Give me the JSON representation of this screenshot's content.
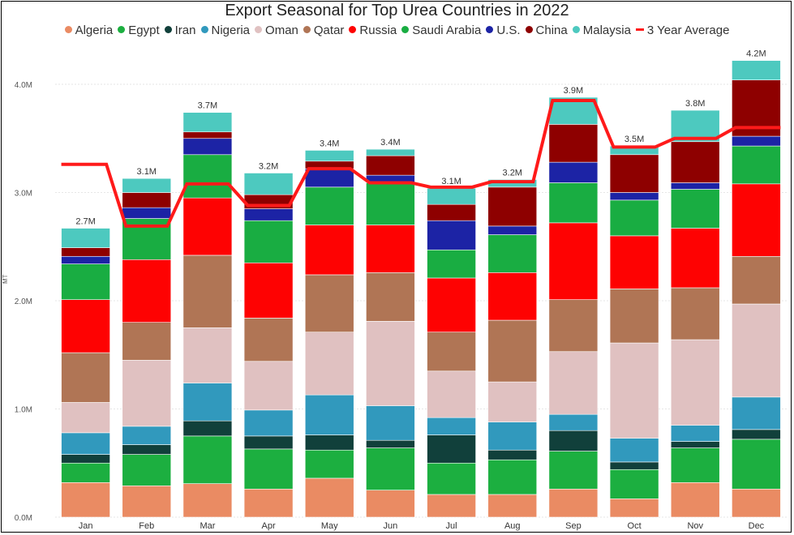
{
  "chart_data": {
    "type": "bar",
    "stacked": true,
    "title": "Export Seasonal for Top Urea Countries in 2022",
    "xlabel": "",
    "ylabel": "MT",
    "ylim": [
      0,
      4200000
    ],
    "yticks": [
      {
        "value": 0,
        "label": "0.0M"
      },
      {
        "value": 1000000,
        "label": "1.0M"
      },
      {
        "value": 2000000,
        "label": "2.0M"
      },
      {
        "value": 3000000,
        "label": "3.0M"
      },
      {
        "value": 4000000,
        "label": "4.0M"
      }
    ],
    "grid": true,
    "legend_position": "top",
    "categories": [
      "Jan",
      "Feb",
      "Mar",
      "Apr",
      "May",
      "Jun",
      "Jul",
      "Aug",
      "Sep",
      "Oct",
      "Nov",
      "Dec"
    ],
    "totals_labels": [
      "2.7M",
      "3.1M",
      "3.7M",
      "3.2M",
      "3.4M",
      "3.4M",
      "3.1M",
      "3.2M",
      "3.9M",
      "3.5M",
      "3.8M",
      "4.2M"
    ],
    "series": [
      {
        "name": "Algeria",
        "color": "#ea8b63",
        "values": [
          320000,
          290000,
          310000,
          260000,
          360000,
          250000,
          210000,
          210000,
          260000,
          170000,
          320000,
          260000
        ]
      },
      {
        "name": "Egypt",
        "color": "#1caf40",
        "values": [
          180000,
          290000,
          440000,
          370000,
          260000,
          390000,
          290000,
          320000,
          350000,
          270000,
          320000,
          460000
        ]
      },
      {
        "name": "Iran",
        "color": "#11403b",
        "values": [
          80000,
          90000,
          140000,
          120000,
          140000,
          70000,
          260000,
          90000,
          190000,
          70000,
          60000,
          90000
        ]
      },
      {
        "name": "Nigeria",
        "color": "#3199bd",
        "values": [
          200000,
          170000,
          350000,
          240000,
          370000,
          320000,
          160000,
          260000,
          150000,
          220000,
          150000,
          300000
        ]
      },
      {
        "name": "Oman",
        "color": "#e0c1c1",
        "values": [
          280000,
          610000,
          510000,
          450000,
          580000,
          780000,
          430000,
          370000,
          580000,
          880000,
          790000,
          860000
        ]
      },
      {
        "name": "Qatar",
        "color": "#b07555",
        "values": [
          460000,
          350000,
          670000,
          400000,
          530000,
          450000,
          360000,
          570000,
          480000,
          500000,
          480000,
          440000
        ]
      },
      {
        "name": "Russia",
        "color": "#fe0202",
        "values": [
          490000,
          580000,
          530000,
          510000,
          460000,
          440000,
          500000,
          440000,
          710000,
          490000,
          550000,
          670000
        ]
      },
      {
        "name": "Saudi Arabia",
        "color": "#19ad42",
        "values": [
          330000,
          380000,
          400000,
          390000,
          350000,
          390000,
          260000,
          350000,
          370000,
          330000,
          360000,
          350000
        ]
      },
      {
        "name": "U.S.",
        "color": "#1c23a5",
        "values": [
          70000,
          100000,
          150000,
          110000,
          170000,
          70000,
          270000,
          80000,
          190000,
          70000,
          60000,
          90000
        ]
      },
      {
        "name": "China",
        "color": "#8e0000",
        "values": [
          80000,
          140000,
          60000,
          130000,
          70000,
          180000,
          150000,
          360000,
          350000,
          350000,
          380000,
          520000
        ]
      },
      {
        "name": "Malaysia",
        "color": "#4dc9bf",
        "values": [
          180000,
          130000,
          180000,
          200000,
          100000,
          60000,
          150000,
          70000,
          250000,
          80000,
          290000,
          180000
        ]
      }
    ],
    "line_series": {
      "name": "3 Year Average",
      "color": "#ff1a1a",
      "values": [
        3260000,
        2690000,
        3080000,
        2880000,
        3220000,
        3090000,
        3050000,
        3100000,
        3850000,
        3420000,
        3500000,
        3600000
      ]
    }
  }
}
